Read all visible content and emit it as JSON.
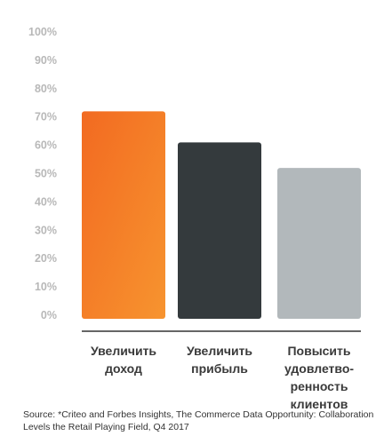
{
  "chart_data": {
    "type": "bar",
    "categories": [
      "Увеличить\nдоход",
      "Увеличить\nприбыль",
      "Повысить\nудовлетво-\nренность клиентов"
    ],
    "values": [
      72,
      61,
      52
    ],
    "colors": [
      "#f47a2e",
      "#343a3d",
      "#b2b8bb"
    ],
    "ylim": [
      0,
      100
    ],
    "ytick_labels": [
      "0%",
      "10%",
      "20%",
      "30%",
      "40%",
      "50%",
      "60%",
      "70%",
      "80%",
      "90%",
      "100%"
    ],
    "grid": false,
    "title": "",
    "xlabel": "",
    "ylabel": ""
  },
  "source_text": "Source: *Criteo and Forbes Insights, The Commerce Data Opportunity: Collaboration Levels the Retail Playing Field, Q4 2017"
}
